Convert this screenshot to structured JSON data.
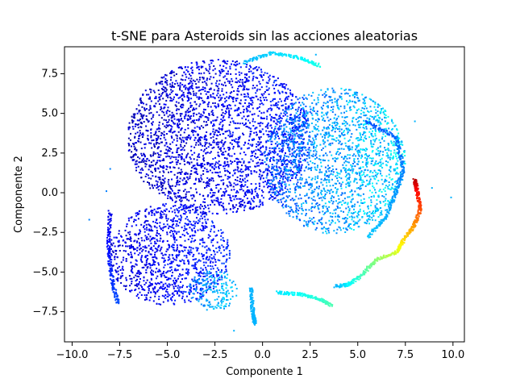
{
  "chart_data": {
    "type": "scatter",
    "title": "t-SNE para Asteroids sin las acciones aleatorias",
    "xlabel": "Componente 1",
    "ylabel": "Componente 2",
    "xlim": [
      -10.4,
      10.6
    ],
    "ylim": [
      -9.4,
      9.2
    ],
    "xticks": [
      -10.0,
      -7.5,
      -5.0,
      -2.5,
      0.0,
      2.5,
      5.0,
      7.5,
      10.0
    ],
    "xtick_labels": [
      "−10.0",
      "−7.5",
      "−5.0",
      "−2.5",
      "0.0",
      "2.5",
      "5.0",
      "7.5",
      "10.0"
    ],
    "yticks": [
      -7.5,
      -5.0,
      -2.5,
      0.0,
      2.5,
      5.0,
      7.5
    ],
    "ytick_labels": [
      "−7.5",
      "−5.0",
      "−2.5",
      "0.0",
      "2.5",
      "5.0",
      "7.5"
    ],
    "grid": false,
    "colormap": "jet",
    "colors": {
      "dark_blue": "#0000d0",
      "blue": "#0040ff",
      "cyan": "#00d4ff",
      "green": "#7dff7a",
      "yellow": "#ffd400",
      "red": "#e01000"
    },
    "clusters": [
      {
        "shape": "ellipse",
        "center": [
          -2.3,
          3.5
        ],
        "radius": [
          4.8,
          4.9
        ],
        "value_range": [
          0.02,
          0.2
        ]
      },
      {
        "shape": "ellipse",
        "center": [
          3.8,
          2.0
        ],
        "radius": [
          3.7,
          4.6
        ],
        "value_range": [
          0.15,
          0.42
        ]
      },
      {
        "shape": "ellipse",
        "center": [
          -4.9,
          -3.9
        ],
        "radius": [
          3.2,
          3.2
        ],
        "value_range": [
          0.05,
          0.2
        ]
      },
      {
        "shape": "ellipse",
        "center": [
          -2.6,
          -6.2
        ],
        "radius": [
          1.3,
          1.3
        ],
        "value_range": [
          0.2,
          0.38
        ]
      }
    ],
    "curves": [
      {
        "points": [
          [
            -1.0,
            8.2
          ],
          [
            0.5,
            8.8
          ],
          [
            2.0,
            8.5
          ],
          [
            3.0,
            8.0
          ]
        ],
        "value_range": [
          0.3,
          0.4
        ]
      },
      {
        "points": [
          [
            5.4,
            4.5
          ],
          [
            7.0,
            3.5
          ],
          [
            7.4,
            1.5
          ],
          [
            7.0,
            0.0
          ],
          [
            6.5,
            -1.5
          ],
          [
            5.5,
            -2.8
          ]
        ],
        "value_range": [
          0.2,
          0.32
        ]
      },
      {
        "points": [
          [
            8.0,
            0.8
          ],
          [
            8.1,
            0.2
          ],
          [
            8.3,
            -1.0
          ],
          [
            8.0,
            -2.0
          ],
          [
            7.4,
            -3.0
          ],
          [
            7.0,
            -3.8
          ],
          [
            6.0,
            -4.2
          ],
          [
            5.2,
            -5.2
          ],
          [
            4.5,
            -5.8
          ],
          [
            3.8,
            -5.9
          ]
        ],
        "value_range": [
          0.95,
          0.3
        ]
      },
      {
        "points": [
          [
            0.8,
            -6.3
          ],
          [
            2.0,
            -6.4
          ],
          [
            3.0,
            -6.7
          ],
          [
            3.6,
            -7.1
          ]
        ],
        "value_range": [
          0.35,
          0.45
        ]
      },
      {
        "points": [
          [
            -0.6,
            -6.0
          ],
          [
            -0.5,
            -7.6
          ],
          [
            -0.4,
            -8.3
          ]
        ],
        "value_range": [
          0.3,
          0.3
        ]
      },
      {
        "points": [
          [
            -8.0,
            -1.2
          ],
          [
            -8.1,
            -3.5
          ],
          [
            -7.9,
            -5.5
          ],
          [
            -7.6,
            -7.0
          ]
        ],
        "value_range": [
          0.1,
          0.2
        ]
      }
    ],
    "outliers": [
      {
        "x": -9.1,
        "y": -1.7,
        "value": 0.25
      },
      {
        "x": -8.2,
        "y": 0.1,
        "value": 0.25
      },
      {
        "x": -8.0,
        "y": 1.5,
        "value": 0.25
      },
      {
        "x": 2.8,
        "y": 8.7,
        "value": 0.3
      },
      {
        "x": 8.9,
        "y": 0.3,
        "value": 0.3
      },
      {
        "x": 9.9,
        "y": -0.3,
        "value": 0.3
      },
      {
        "x": 8.0,
        "y": 4.5,
        "value": 0.3
      },
      {
        "x": -1.5,
        "y": -8.7,
        "value": 0.3
      }
    ]
  }
}
